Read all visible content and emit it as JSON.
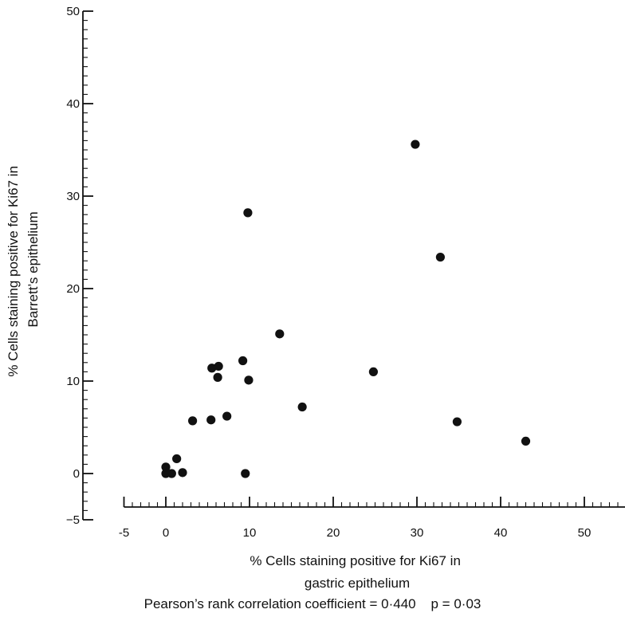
{
  "chart_data": {
    "type": "scatter",
    "title": "",
    "xlabel": [
      "% Cells staining positive for Ki67 in",
      "gastric epithelium"
    ],
    "ylabel": [
      "% Cells staining positive for Ki67 in",
      "Barrett’s epithelium"
    ],
    "xlim": [
      -5,
      55
    ],
    "ylim": [
      -5,
      50
    ],
    "x_ticks": [
      -5,
      0,
      10,
      20,
      30,
      40,
      50
    ],
    "x_tick_labels": [
      "-5",
      "0",
      "10",
      "20",
      "30",
      "40",
      "50"
    ],
    "y_ticks": [
      -5,
      0,
      10,
      20,
      30,
      40,
      50
    ],
    "y_tick_labels": [
      "−5",
      "0",
      "10",
      "20",
      "30",
      "40",
      "50"
    ],
    "grid": false,
    "series": [
      {
        "points": [
          [
            0,
            0
          ],
          [
            0,
            0.7
          ],
          [
            0.7,
            0
          ],
          [
            1.3,
            1.6
          ],
          [
            2,
            0.1
          ],
          [
            3.2,
            5.7
          ],
          [
            5.4,
            5.8
          ],
          [
            5.5,
            11.4
          ],
          [
            6.2,
            10.4
          ],
          [
            6.3,
            11.6
          ],
          [
            7.3,
            6.2
          ],
          [
            9.2,
            12.2
          ],
          [
            9.5,
            0
          ],
          [
            9.8,
            28.2
          ],
          [
            9.9,
            10.1
          ],
          [
            13.6,
            15.1
          ],
          [
            16.3,
            7.2
          ],
          [
            24.8,
            11
          ],
          [
            29.8,
            35.6
          ],
          [
            32.8,
            23.4
          ],
          [
            34.8,
            5.6
          ],
          [
            43,
            3.5
          ]
        ]
      }
    ]
  },
  "footnote": "Pearson’s rank correlation coefficient = 0·440    p = 0·03"
}
